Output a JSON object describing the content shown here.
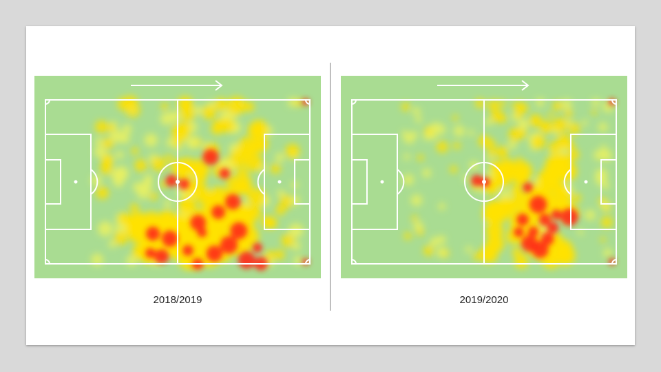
{
  "panels": [
    {
      "season": "2018/2019"
    },
    {
      "season": "2019/2020"
    }
  ],
  "colors": {
    "pitch": "#a9dc92",
    "lines": "#ffffff",
    "low": "#eaf160",
    "mid": "#ffe100",
    "high": "#ff2a1a",
    "background": "#d9d9d9"
  },
  "icons": [
    "attack-direction-arrow-icon"
  ]
}
